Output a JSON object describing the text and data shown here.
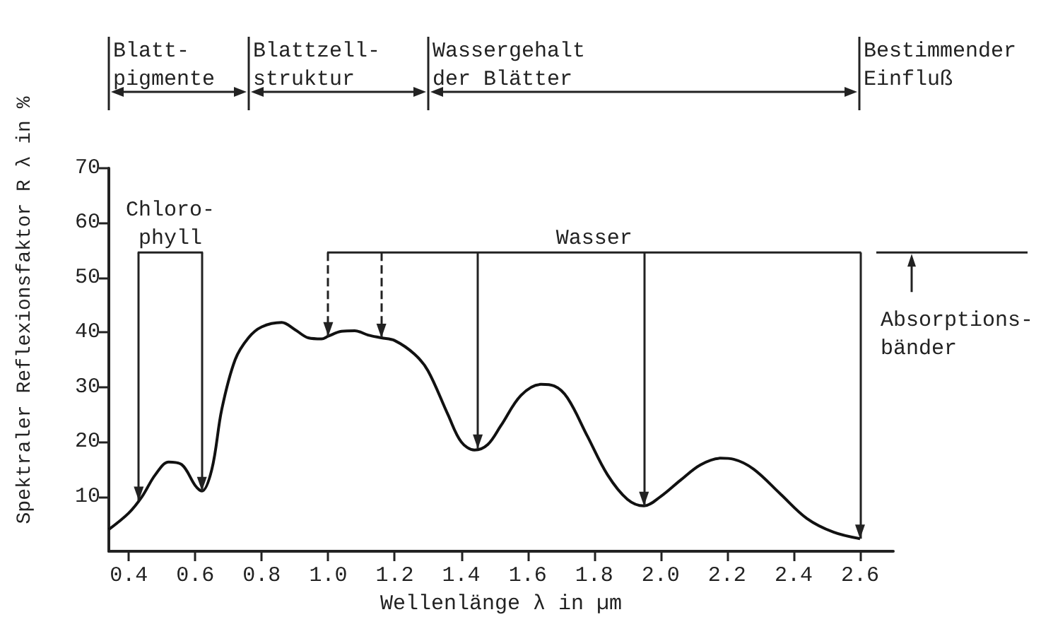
{
  "chart_data": {
    "type": "line",
    "xlabel": "Wellenlänge λ in µm",
    "ylabel": "Spektraler Reflexionsfaktor R λ in %",
    "x": [
      0.34,
      0.4,
      0.44,
      0.48,
      0.52,
      0.56,
      0.6,
      0.62,
      0.65,
      0.68,
      0.72,
      0.76,
      0.8,
      0.86,
      0.9,
      0.94,
      0.98,
      1.0,
      1.04,
      1.08,
      1.12,
      1.16,
      1.2,
      1.26,
      1.3,
      1.36,
      1.4,
      1.44,
      1.48,
      1.52,
      1.58,
      1.64,
      1.68,
      1.72,
      1.78,
      1.84,
      1.9,
      1.95,
      2.0,
      2.06,
      2.12,
      2.18,
      2.22,
      2.28,
      2.36,
      2.44,
      2.52,
      2.6
    ],
    "series": [
      {
        "color": "#111111",
        "values": [
          4,
          7,
          10,
          14,
          16.3,
          15.8,
          12,
          11,
          15,
          26,
          35,
          39,
          41,
          41.8,
          40.5,
          39,
          38.8,
          39.3,
          40.2,
          40.3,
          39.5,
          39,
          38.5,
          36,
          33,
          25,
          20,
          18.5,
          19.5,
          23,
          28.5,
          30.5,
          30.2,
          28,
          21,
          14,
          9.5,
          8.3,
          10,
          13,
          15.8,
          17,
          16.8,
          15,
          10.5,
          6,
          3.5,
          2.3
        ]
      }
    ],
    "xlim": [
      0.34,
      2.7
    ],
    "xticks": [
      0.4,
      0.6,
      0.8,
      {
        "value": 1.0,
        "label": "1.0"
      },
      1.2,
      1.4,
      1.6,
      1.8,
      {
        "value": 2.0,
        "label": "2.0"
      },
      2.2,
      2.4,
      2.6
    ],
    "ylim": [
      0,
      70
    ],
    "yticks": [
      10,
      20,
      30,
      40,
      50,
      60,
      70
    ],
    "grid": false,
    "marker": "none",
    "line_style": "solid",
    "ref_lines": [
      {
        "axis": "x",
        "value": 0.43,
        "label": null
      },
      {
        "axis": "x",
        "value": 0.62,
        "label": null
      },
      {
        "axis": "x",
        "value": 1.0,
        "label": null,
        "line_style": "dashed"
      },
      {
        "axis": "x",
        "value": 1.16,
        "label": null,
        "line_style": "dashed"
      },
      {
        "axis": "x",
        "value": 1.45,
        "label": null
      },
      {
        "axis": "x",
        "value": 1.95,
        "label": null
      },
      {
        "axis": "x",
        "value": 2.6,
        "label": null
      }
    ],
    "annotations": [
      "Blatt-\npigmente",
      "Blattzell-\nstruktur",
      "Wassergehalt\nder Blätter",
      "Bestimmender\nEinfluß",
      "Chloro-\nphyll",
      "Wasser",
      "Absorptions-\nbänder"
    ]
  }
}
